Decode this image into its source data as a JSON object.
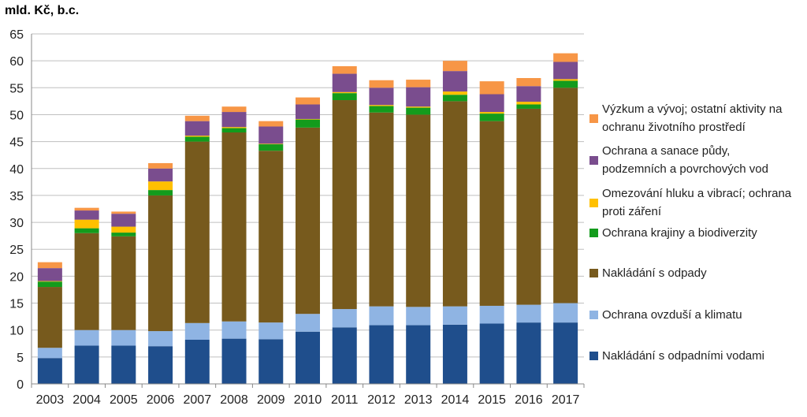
{
  "chart_data": {
    "type": "bar",
    "stacked": true,
    "unit_label": "mld. Kč, b.c.",
    "categories": [
      "2003",
      "2004",
      "2005",
      "2006",
      "2007",
      "2008",
      "2009",
      "2010",
      "2011",
      "2012",
      "2013",
      "2014",
      "2015",
      "2016",
      "2017"
    ],
    "ylim": [
      0,
      65
    ],
    "yticks": [
      "0",
      "5",
      "10",
      "15",
      "20",
      "25",
      "30",
      "35",
      "40",
      "45",
      "50",
      "55",
      "60",
      "65"
    ],
    "grid": true,
    "legend_position": "right",
    "series": [
      {
        "name": "Nakládání s odpadními vodami",
        "color": "#1f4e8c",
        "values": [
          4.8,
          7.1,
          7.1,
          7.0,
          8.2,
          8.4,
          8.3,
          9.7,
          10.5,
          10.9,
          10.9,
          11.0,
          11.2,
          11.4,
          11.4
        ]
      },
      {
        "name": "Ochrana ovzduší a klimatu",
        "color": "#8fb4e3",
        "values": [
          1.9,
          2.9,
          2.9,
          2.8,
          3.1,
          3.2,
          3.1,
          3.3,
          3.4,
          3.5,
          3.4,
          3.4,
          3.3,
          3.3,
          3.6
        ]
      },
      {
        "name": "Nakládání s odpady",
        "color": "#775a1d",
        "values": [
          11.3,
          18.0,
          17.4,
          25.2,
          33.7,
          35.1,
          31.9,
          34.6,
          38.8,
          36.0,
          35.7,
          38.1,
          34.3,
          36.4,
          40.0
        ]
      },
      {
        "name": "Ochrana krajiny a biodiverzity",
        "color": "#139b1c",
        "values": [
          1.0,
          0.9,
          0.7,
          1.0,
          0.9,
          0.8,
          1.2,
          1.5,
          1.3,
          1.2,
          1.3,
          1.2,
          1.4,
          0.8,
          1.3
        ]
      },
      {
        "name": "Omezování hluku a vibrací; ochrana proti záření",
        "color": "#ffc000",
        "values": [
          0.1,
          1.6,
          1.1,
          1.6,
          0.2,
          0.2,
          0.1,
          0.1,
          0.2,
          0.2,
          0.2,
          0.6,
          0.3,
          0.5,
          0.3
        ]
      },
      {
        "name": "Ochrana a sanace půdy, podzemních a povrchových vod",
        "color": "#7a4d8e",
        "values": [
          2.4,
          1.7,
          2.4,
          2.4,
          2.7,
          2.8,
          3.2,
          2.7,
          3.4,
          3.2,
          3.6,
          3.8,
          3.3,
          2.9,
          3.2
        ]
      },
      {
        "name": "Výzkum a vývoj; ostatní aktivity na ochranu životního prostředí",
        "color": "#f79646",
        "values": [
          1.1,
          0.5,
          0.4,
          1.0,
          1.0,
          1.0,
          1.0,
          1.3,
          1.4,
          1.4,
          1.4,
          1.9,
          2.4,
          1.5,
          1.6
        ]
      }
    ],
    "legend": [
      {
        "lines": [
          "Výzkum a vývoj; ostatní aktivity na",
          "ochranu životního prostředí"
        ],
        "color": "#f79646"
      },
      {
        "lines": [
          "Ochrana a sanace půdy,",
          "podzemních a povrchových vod"
        ],
        "color": "#7a4d8e"
      },
      {
        "lines": [
          "Omezování hluku a vibrací; ochrana",
          "proti záření"
        ],
        "color": "#ffc000"
      },
      {
        "lines": [
          "Ochrana krajiny a biodiverzity"
        ],
        "color": "#139b1c"
      },
      {
        "lines": [
          "Nakládání s odpady"
        ],
        "color": "#775a1d"
      },
      {
        "lines": [
          "Ochrana ovzduší a klimatu"
        ],
        "color": "#8fb4e3"
      },
      {
        "lines": [
          "Nakládání s odpadními vodami"
        ],
        "color": "#1f4e8c"
      }
    ]
  }
}
